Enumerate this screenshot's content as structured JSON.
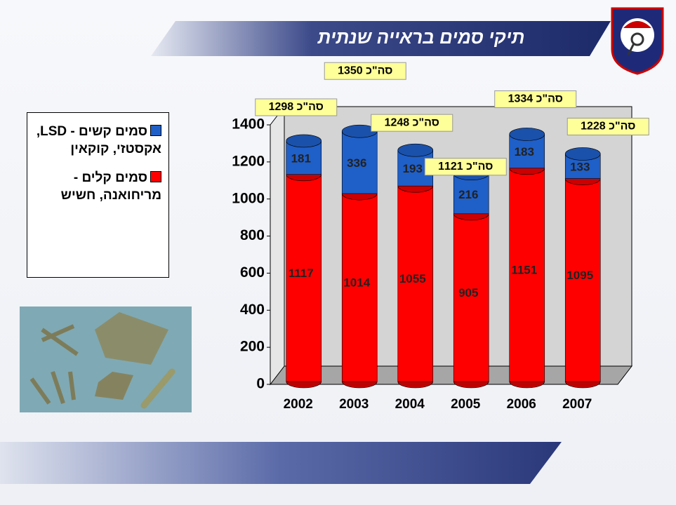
{
  "chart_data": {
    "type": "stacked-cylinder",
    "title": "תיקי סמים בראייה שנתית",
    "categories": [
      "2002",
      "2003",
      "2004",
      "2005",
      "2006",
      "2007"
    ],
    "series": [
      {
        "name": "סמים קלים - מריחואנה, חשיש",
        "color": "#ff0000",
        "values": [
          1117,
          1014,
          1055,
          905,
          1151,
          1095
        ]
      },
      {
        "name": "סמים קשים - LSD, אקסטזי, קוקאין",
        "color": "#1f5fc8",
        "values": [
          181,
          336,
          193,
          216,
          183,
          133
        ]
      }
    ],
    "totals": {
      "values": [
        1298,
        1350,
        1248,
        1121,
        1334,
        1228
      ],
      "value_labels": [
        "סה\"כ 1298",
        "סה\"כ 1350",
        "סה\"כ 1248",
        "סה\"כ 1121",
        "סה\"כ 1334",
        "סה\"כ 1228"
      ]
    },
    "ylim": [
      0,
      1400
    ],
    "yticks": [
      0,
      200,
      400,
      600,
      800,
      1000,
      1200,
      1400
    ]
  }
}
